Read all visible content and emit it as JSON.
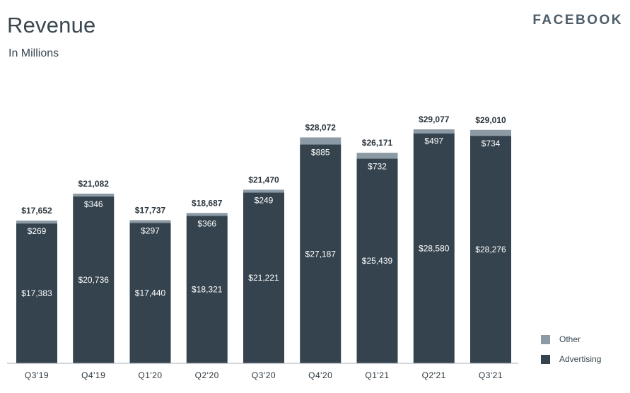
{
  "header": {
    "title": "Revenue",
    "subtitle": "In Millions",
    "brand": "FACEBOOK"
  },
  "colors": {
    "advertising": "#34434e",
    "other": "#8b9aa5",
    "text_dark": "#2b353d",
    "text_light": "#ffffff"
  },
  "chart_data": {
    "type": "bar",
    "stacked": true,
    "title": "Revenue",
    "subtitle": "In Millions",
    "xlabel": "",
    "ylabel": "",
    "ylim": [
      0,
      30000
    ],
    "grid": false,
    "legend_position": "bottom-right",
    "categories": [
      "Q3'19",
      "Q4'19",
      "Q1'20",
      "Q2'20",
      "Q3'20",
      "Q4'20",
      "Q1'21",
      "Q2'21",
      "Q3'21"
    ],
    "series": [
      {
        "name": "Advertising",
        "values": [
          17383,
          20736,
          17440,
          18321,
          21221,
          27187,
          25439,
          28580,
          28276
        ],
        "labels": [
          "$17,383",
          "$20,736",
          "$17,440",
          "$18,321",
          "$21,221",
          "$27,187",
          "$25,439",
          "$28,580",
          "$28,276"
        ]
      },
      {
        "name": "Other",
        "values": [
          269,
          346,
          297,
          366,
          249,
          885,
          732,
          497,
          734
        ],
        "labels": [
          "$269",
          "$346",
          "$297",
          "$366",
          "$249",
          "$885",
          "$732",
          "$497",
          "$734"
        ]
      }
    ],
    "totals": [
      17652,
      21082,
      17737,
      18687,
      21470,
      28072,
      26171,
      29077,
      29010
    ],
    "total_labels": [
      "$17,652",
      "$21,082",
      "$17,737",
      "$18,687",
      "$21,470",
      "$28,072",
      "$26,171",
      "$29,077",
      "$29,010"
    ]
  }
}
